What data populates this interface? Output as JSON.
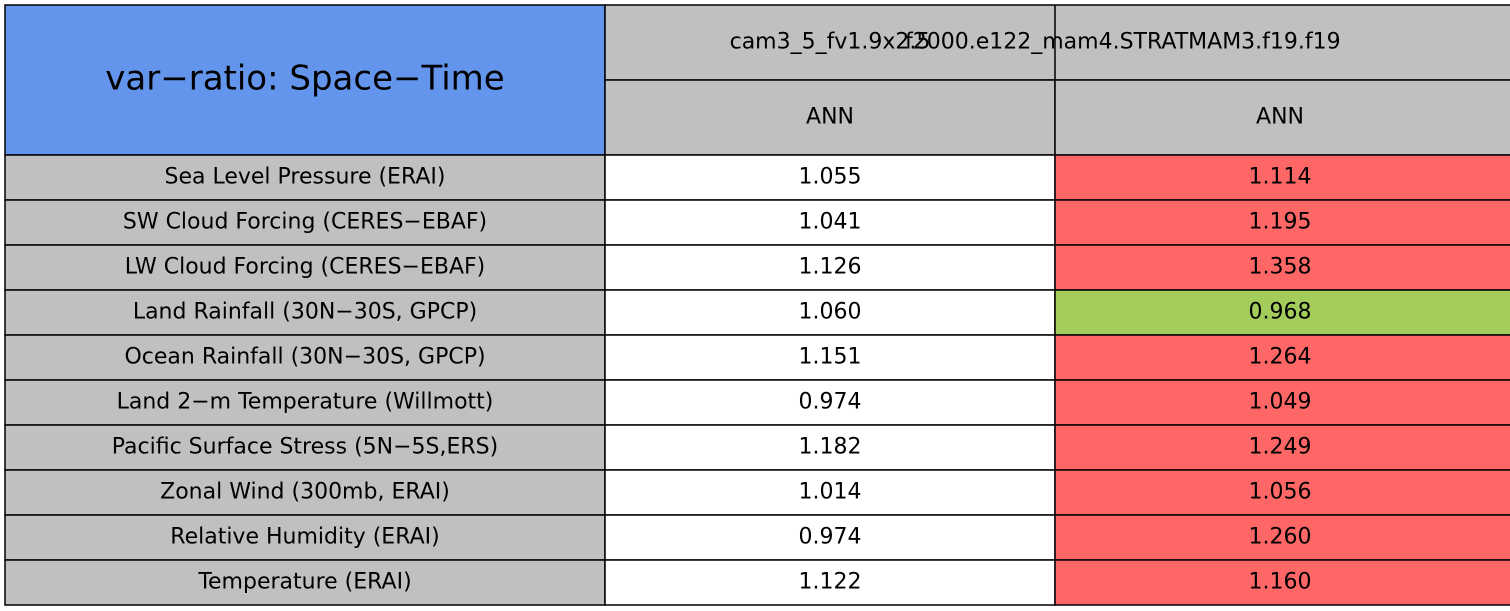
{
  "header": {
    "title": "var−ratio: Space−Time",
    "columns": [
      "cam3_5_fv1.9x2.5",
      "f2000.e122_mam4.STRATMAM3.f19.f19"
    ],
    "seasons": [
      "ANN",
      "ANN"
    ],
    "title_color": "#6495ed",
    "header_color": "#c0c0c0"
  },
  "table": {
    "label_color": "#c0c0c0",
    "rows": [
      {
        "label": "Sea Level Pressure (ERAI)",
        "values": [
          "1.055",
          "1.114"
        ],
        "colors": [
          "#ffffff",
          "#ff6666"
        ]
      },
      {
        "label": "SW Cloud Forcing (CERES−EBAF)",
        "values": [
          "1.041",
          "1.195"
        ],
        "colors": [
          "#ffffff",
          "#ff6666"
        ]
      },
      {
        "label": "LW Cloud Forcing (CERES−EBAF)",
        "values": [
          "1.126",
          "1.358"
        ],
        "colors": [
          "#ffffff",
          "#ff6666"
        ]
      },
      {
        "label": "Land Rainfall (30N−30S, GPCP)",
        "values": [
          "1.060",
          "0.968"
        ],
        "colors": [
          "#ffffff",
          "#a3cc5a"
        ]
      },
      {
        "label": "Ocean Rainfall (30N−30S, GPCP)",
        "values": [
          "1.151",
          "1.264"
        ],
        "colors": [
          "#ffffff",
          "#ff6666"
        ]
      },
      {
        "label": "Land 2−m Temperature (Willmott)",
        "values": [
          "0.974",
          "1.049"
        ],
        "colors": [
          "#ffffff",
          "#ff6666"
        ]
      },
      {
        "label": "Pacific Surface Stress (5N−5S,ERS)",
        "values": [
          "1.182",
          "1.249"
        ],
        "colors": [
          "#ffffff",
          "#ff6666"
        ]
      },
      {
        "label": "Zonal Wind (300mb, ERAI)",
        "values": [
          "1.014",
          "1.056"
        ],
        "colors": [
          "#ffffff",
          "#ff6666"
        ]
      },
      {
        "label": "Relative Humidity (ERAI)",
        "values": [
          "0.974",
          "1.260"
        ],
        "colors": [
          "#ffffff",
          "#ff6666"
        ]
      },
      {
        "label": "Temperature (ERAI)",
        "values": [
          "1.122",
          "1.160"
        ],
        "colors": [
          "#ffffff",
          "#ff6666"
        ]
      }
    ]
  }
}
